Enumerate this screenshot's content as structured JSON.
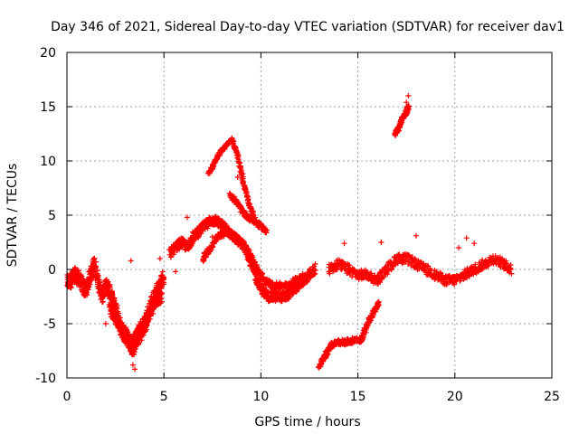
{
  "chart_data": {
    "type": "scatter",
    "title": "Day 346 of 2021, Sidereal Day-to-day VTEC variation (SDTVAR) for receiver dav1",
    "xlabel": "GPS time / hours",
    "ylabel": "SDTVAR / TECUs",
    "xlim": [
      0,
      25
    ],
    "ylim": [
      -10,
      20
    ],
    "xticks": [
      0,
      5,
      10,
      15,
      20,
      25
    ],
    "yticks": [
      -10,
      -5,
      0,
      5,
      10,
      15,
      20
    ],
    "xtick_labels": [
      "0",
      "5",
      "10",
      "15",
      "20",
      "25"
    ],
    "ytick_labels": [
      "-10",
      "-5",
      "0",
      "5",
      "10",
      "15",
      "20"
    ],
    "grid": true,
    "marker": "+",
    "series": [
      {
        "name": "dav1 SDTVAR",
        "color": "#ff0000",
        "segments": [
          {
            "x": [
              0.0,
              0.2,
              0.4,
              0.6,
              0.8,
              1.0,
              1.2,
              1.4,
              1.6,
              1.8,
              2.0,
              2.2,
              2.4,
              2.6,
              2.8,
              3.0,
              3.2,
              3.4,
              3.6,
              3.8,
              4.0,
              4.2,
              4.4,
              4.6,
              4.8,
              5.0
            ],
            "y": [
              -1.2,
              -1.0,
              -0.5,
              -0.8,
              -1.5,
              -2.0,
              -0.5,
              0.5,
              -1.0,
              -2.5,
              -1.5,
              -2.0,
              -3.0,
              -4.0,
              -5.5,
              -6.0,
              -6.5,
              -7.0,
              -6.0,
              -5.5,
              -5.0,
              -4.0,
              -3.0,
              -2.0,
              -1.5,
              -0.5
            ],
            "spread": 1.4
          },
          {
            "x": [
              2.2,
              2.5,
              2.8,
              3.1,
              3.4,
              3.7,
              4.0,
              4.3,
              4.6,
              4.9
            ],
            "y": [
              -3.5,
              -4.5,
              -5.5,
              -6.5,
              -7.5,
              -6.5,
              -5.5,
              -4.0,
              -3.0,
              -2.5
            ],
            "spread": 1.0
          },
          {
            "x": [
              5.3,
              5.6,
              5.9,
              6.2,
              6.5,
              6.8,
              7.1,
              7.4,
              7.7,
              8.0,
              8.3,
              8.6,
              8.9,
              9.2,
              9.5,
              9.8,
              10.1,
              10.4,
              10.7,
              11.0,
              11.3,
              11.6,
              11.9,
              12.2,
              12.5,
              12.8
            ],
            "y": [
              1.5,
              2.0,
              2.5,
              2.0,
              3.0,
              3.5,
              4.0,
              4.5,
              4.5,
              4.0,
              3.5,
              3.0,
              2.5,
              2.0,
              0.5,
              -1.0,
              -2.0,
              -2.5,
              -2.5,
              -2.5,
              -2.5,
              -2.0,
              -1.5,
              -1.0,
              -0.5,
              0.0
            ],
            "spread": 0.9
          },
          {
            "x": [
              7.0,
              7.4,
              7.8,
              8.2,
              8.6,
              9.0,
              9.4,
              9.8,
              10.2,
              10.6,
              11.0,
              11.4,
              11.8,
              12.2
            ],
            "y": [
              1.0,
              2.0,
              3.0,
              3.5,
              3.0,
              2.5,
              1.5,
              0.0,
              -1.0,
              -1.5,
              -1.5,
              -1.5,
              -1.0,
              -0.5
            ],
            "spread": 0.6
          },
          {
            "x": [
              7.3,
              7.6,
              7.9,
              8.2,
              8.5,
              8.8,
              9.1,
              9.4,
              9.7
            ],
            "y": [
              8.8,
              9.8,
              10.8,
              11.4,
              12.0,
              10.5,
              8.0,
              6.0,
              4.5
            ],
            "spread": 0.3
          },
          {
            "x": [
              8.4,
              8.8,
              9.2,
              9.6,
              10.0,
              10.3
            ],
            "y": [
              7.0,
              6.0,
              5.0,
              4.5,
              4.0,
              3.5
            ],
            "spread": 0.5
          },
          {
            "x": [
              13.0,
              13.3,
              13.6,
              14.0,
              14.4,
              14.8,
              15.2,
              15.5,
              15.8,
              16.1
            ],
            "y": [
              -9.0,
              -8.0,
              -7.0,
              -6.7,
              -6.7,
              -6.5,
              -6.5,
              -5.0,
              -4.0,
              -3.0
            ],
            "spread": 0.5
          },
          {
            "x": [
              13.5,
              14.0,
              14.5,
              15.0,
              15.5,
              16.0,
              16.5,
              17.0,
              17.5,
              18.0,
              18.5,
              19.0,
              19.5,
              20.0,
              20.5,
              21.0,
              21.5,
              22.0,
              22.5,
              22.9
            ],
            "y": [
              0.0,
              0.5,
              0.0,
              -0.5,
              -0.5,
              -1.0,
              0.0,
              1.0,
              1.0,
              0.5,
              0.0,
              -0.5,
              -1.0,
              -1.0,
              -0.5,
              0.0,
              0.5,
              1.0,
              0.5,
              0.0
            ],
            "spread": 0.9
          },
          {
            "x": [
              16.9,
              17.1,
              17.3,
              17.5,
              17.6
            ],
            "y": [
              12.5,
              13.0,
              14.0,
              14.5,
              15.0
            ],
            "spread": 0.4
          }
        ],
        "outliers": {
          "x": [
            3.5,
            3.4,
            4.6,
            4.8,
            6.2,
            7.5,
            8.8,
            12.8,
            14.3,
            18.0,
            20.6,
            20.2,
            21.0,
            17.6,
            17.5,
            16.2,
            5.6,
            3.3,
            2.0
          ],
          "y": [
            -9.2,
            -8.8,
            -3.0,
            1.0,
            4.8,
            3.0,
            8.5,
            0.5,
            2.4,
            3.1,
            2.9,
            2.0,
            2.4,
            16.0,
            15.4,
            2.5,
            -0.2,
            0.8,
            -5.0
          ]
        }
      }
    ]
  }
}
